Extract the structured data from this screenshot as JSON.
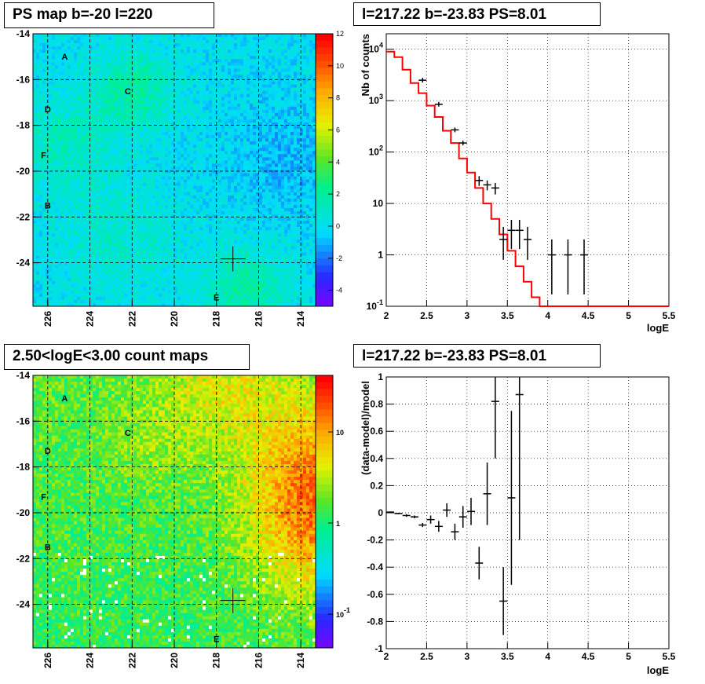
{
  "titles": {
    "top_left": "PS map b=-20 l=220",
    "top_right": "l=217.22 b=-23.83 PS=8.01",
    "bottom_left": "2.50<logE<3.00 count maps",
    "bottom_right": "l=217.22 b=-23.83 PS=8.01"
  },
  "chart_data": [
    {
      "type": "heatmap",
      "title": "PS map b=-20 l=220",
      "x_ticks": [
        "226",
        "224",
        "222",
        "220",
        "218",
        "216",
        "214"
      ],
      "y_ticks": [
        "-14",
        "-16",
        "-18",
        "-20",
        "-22",
        "-24"
      ],
      "xlim": [
        226.7,
        213.3
      ],
      "ylim": [
        -14,
        -25.9
      ],
      "colorbar_ticks": [
        "12",
        "10",
        "8",
        "6",
        "4",
        "2",
        "0",
        "-2",
        "-4"
      ],
      "colorbar_range": [
        -5,
        12
      ],
      "source_labels": [
        {
          "label": "A",
          "l": 225.2,
          "b": -15.0
        },
        {
          "label": "C",
          "l": 222.2,
          "b": -16.5
        },
        {
          "label": "D",
          "l": 226.0,
          "b": -17.3
        },
        {
          "label": "F",
          "l": 226.2,
          "b": -19.3
        },
        {
          "label": "B",
          "l": 226.0,
          "b": -21.5
        },
        {
          "label": "E",
          "l": 218.0,
          "b": -25.5
        }
      ],
      "marker": {
        "l": 217.22,
        "b": -23.83
      }
    },
    {
      "type": "line",
      "title": "l=217.22 b=-23.83 PS=8.01",
      "xlabel": "logE",
      "ylabel": "Nb of counts",
      "xlim": [
        2,
        5.5
      ],
      "ylim": [
        0.1,
        20000
      ],
      "yscale": "log",
      "x_ticks": [
        "2",
        "2.5",
        "3",
        "3.5",
        "4",
        "4.5",
        "5",
        "5.5"
      ],
      "y_ticks": [
        "10^-1",
        "1",
        "10",
        "10^2",
        "10^3",
        "10^4"
      ],
      "grid": true,
      "model_histogram": {
        "color": "#ff0000",
        "bin_edges": [
          2.0,
          2.1,
          2.2,
          2.3,
          2.4,
          2.5,
          2.6,
          2.7,
          2.8,
          2.9,
          3.0,
          3.1,
          3.2,
          3.3,
          3.4,
          3.5,
          3.6,
          3.7,
          3.8,
          3.9,
          4.0,
          5.5
        ],
        "values": [
          9000,
          7000,
          4000,
          2200,
          1400,
          800,
          480,
          260,
          150,
          75,
          40,
          20,
          10,
          5,
          2.5,
          1.2,
          0.6,
          0.3,
          0.15,
          0.1,
          0.1
        ]
      },
      "data_points": [
        {
          "x": 2.45,
          "y": 2500
        },
        {
          "x": 2.65,
          "y": 850
        },
        {
          "x": 2.85,
          "y": 270
        },
        {
          "x": 2.95,
          "y": 150
        },
        {
          "x": 3.15,
          "y": 28,
          "ylo": 22,
          "yhi": 34
        },
        {
          "x": 3.25,
          "y": 23,
          "ylo": 18,
          "yhi": 28
        },
        {
          "x": 3.35,
          "y": 20,
          "ylo": 15,
          "yhi": 25
        },
        {
          "x": 3.45,
          "y": 2,
          "ylo": 0.8,
          "yhi": 3.5
        },
        {
          "x": 3.55,
          "y": 3,
          "ylo": 1.3,
          "yhi": 4.8
        },
        {
          "x": 3.65,
          "y": 3,
          "ylo": 1.3,
          "yhi": 4.8
        },
        {
          "x": 3.75,
          "y": 2,
          "ylo": 0.8,
          "yhi": 3.5
        },
        {
          "x": 4.05,
          "y": 1,
          "ylo": 0.17,
          "yhi": 2.0
        },
        {
          "x": 4.25,
          "y": 1,
          "ylo": 0.17,
          "yhi": 2.0
        },
        {
          "x": 4.45,
          "y": 1,
          "ylo": 0.17,
          "yhi": 2.0
        }
      ]
    },
    {
      "type": "heatmap",
      "title": "2.50<logE<3.00 count maps",
      "x_ticks": [
        "226",
        "224",
        "222",
        "220",
        "218",
        "216",
        "214"
      ],
      "y_ticks": [
        "-14",
        "-16",
        "-18",
        "-20",
        "-22",
        "-24"
      ],
      "xlim": [
        226.7,
        213.3
      ],
      "ylim": [
        -14,
        -25.9
      ],
      "colorbar_ticks": [
        "10",
        "1",
        "10^-1"
      ],
      "colorbar_scale": "log",
      "source_labels": [
        {
          "label": "A",
          "l": 225.2,
          "b": -15.0
        },
        {
          "label": "C",
          "l": 222.2,
          "b": -16.5
        },
        {
          "label": "D",
          "l": 226.0,
          "b": -17.3
        },
        {
          "label": "F",
          "l": 226.2,
          "b": -19.3
        },
        {
          "label": "B",
          "l": 226.0,
          "b": -21.5
        },
        {
          "label": "E",
          "l": 218.0,
          "b": -25.5
        }
      ],
      "marker": {
        "l": 217.22,
        "b": -23.83
      }
    },
    {
      "type": "scatter",
      "title": "l=217.22 b=-23.83 PS=8.01",
      "xlabel": "logE",
      "ylabel": "(data-model)/model",
      "xlim": [
        2,
        5.5
      ],
      "ylim": [
        -1,
        1
      ],
      "x_ticks": [
        "2",
        "2.5",
        "3",
        "3.5",
        "4",
        "4.5",
        "5",
        "5.5"
      ],
      "y_ticks": [
        "-1",
        "-0.8",
        "-0.6",
        "-0.4",
        "-0.2",
        "0",
        "0.2",
        "0.4",
        "0.6",
        "0.8",
        "1"
      ],
      "grid": true,
      "points": [
        {
          "x": 2.05,
          "y": 0.005,
          "err": 0.005
        },
        {
          "x": 2.15,
          "y": -0.005,
          "err": 0.005
        },
        {
          "x": 2.25,
          "y": -0.02,
          "err": 0.01
        },
        {
          "x": 2.35,
          "y": -0.03,
          "err": 0.01
        },
        {
          "x": 2.45,
          "y": -0.09,
          "err": 0.015
        },
        {
          "x": 2.55,
          "y": -0.05,
          "err": 0.03
        },
        {
          "x": 2.65,
          "y": -0.1,
          "err": 0.04
        },
        {
          "x": 2.75,
          "y": 0.02,
          "err": 0.05
        },
        {
          "x": 2.85,
          "y": -0.14,
          "err": 0.06
        },
        {
          "x": 2.95,
          "y": -0.03,
          "err": 0.08
        },
        {
          "x": 3.05,
          "y": 0.01,
          "err": 0.1
        },
        {
          "x": 3.15,
          "y": -0.37,
          "err": 0.12
        },
        {
          "x": 3.25,
          "y": 0.14,
          "err": 0.23
        },
        {
          "x": 3.35,
          "y": 0.82,
          "err": 0.42
        },
        {
          "x": 3.45,
          "y": -0.65,
          "err": 0.25
        },
        {
          "x": 3.55,
          "y": 0.11,
          "err": 0.64
        },
        {
          "x": 3.65,
          "y": 0.87,
          "err": 1.07
        }
      ]
    }
  ]
}
